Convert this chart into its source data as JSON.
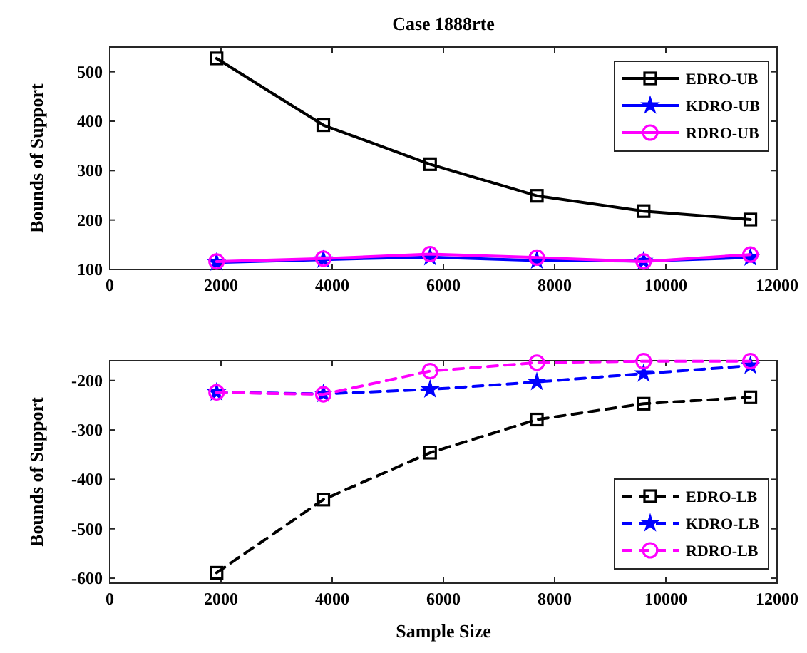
{
  "chart_data": [
    {
      "type": "line",
      "title": "Case 1888rte",
      "ylabel": "Bounds of Support",
      "x": [
        1920,
        3840,
        5760,
        7680,
        9600,
        11520
      ],
      "xlim": [
        0,
        12000
      ],
      "xticks": [
        0,
        2000,
        4000,
        6000,
        8000,
        10000,
        12000
      ],
      "ylim": [
        100,
        550
      ],
      "yticks": [
        100,
        200,
        300,
        400,
        500
      ],
      "legend": "top right",
      "grid": false,
      "line_style": "solid",
      "series": [
        {
          "name": "EDRO-UB",
          "color": "#000000",
          "marker": "square",
          "values": [
            527,
            392,
            313,
            249,
            218,
            201
          ]
        },
        {
          "name": "KDRO-UB",
          "color": "#0000ff",
          "marker": "star",
          "values": [
            114,
            120,
            125,
            118,
            117,
            124
          ]
        },
        {
          "name": "RDRO-UB",
          "color": "#ff00ff",
          "marker": "circle",
          "values": [
            116,
            122,
            131,
            124,
            116,
            130
          ]
        }
      ]
    },
    {
      "type": "line",
      "xlabel": "Sample Size",
      "ylabel": "Bounds of Support",
      "x": [
        1920,
        3840,
        5760,
        7680,
        9600,
        11520
      ],
      "xlim": [
        0,
        12000
      ],
      "xticks": [
        0,
        2000,
        4000,
        6000,
        8000,
        10000,
        12000
      ],
      "ylim": [
        -610,
        -160
      ],
      "yticks": [
        -600,
        -500,
        -400,
        -300,
        -200
      ],
      "legend": "bottom right",
      "grid": false,
      "line_style": "dashed",
      "series": [
        {
          "name": "EDRO-LB",
          "color": "#000000",
          "marker": "square",
          "values": [
            -589,
            -441,
            -346,
            -279,
            -247,
            -234
          ]
        },
        {
          "name": "KDRO-LB",
          "color": "#0000ff",
          "marker": "star",
          "values": [
            -224,
            -227,
            -218,
            -203,
            -186,
            -170
          ]
        },
        {
          "name": "RDRO-LB",
          "color": "#ff00ff",
          "marker": "circle",
          "values": [
            -224,
            -228,
            -181,
            -164,
            -161,
            -161
          ]
        }
      ]
    }
  ]
}
